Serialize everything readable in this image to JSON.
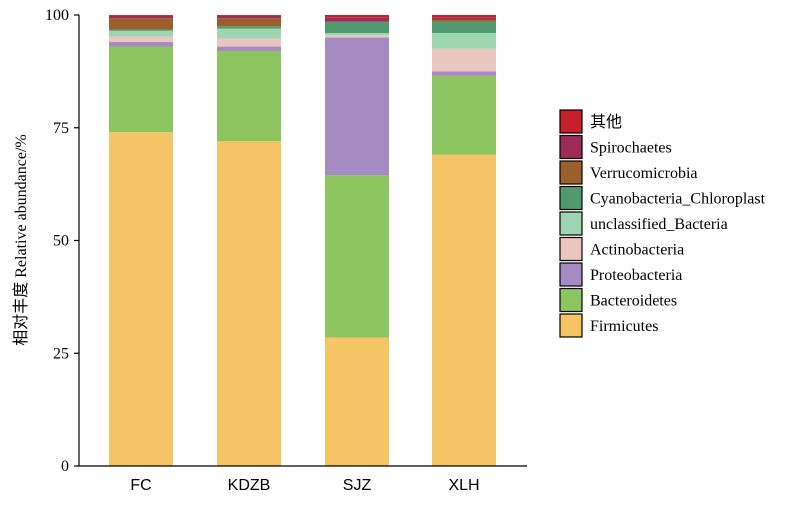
{
  "chart_data": {
    "type": "bar",
    "stacked": true,
    "title": "",
    "xlabel": "",
    "ylabel": "相对丰度 Relative abundance/%",
    "ylim": [
      0,
      100
    ],
    "yticks": [
      0,
      25,
      50,
      75,
      100
    ],
    "categories": [
      "FC",
      "KDZB",
      "SJZ",
      "XLH"
    ],
    "grid": false,
    "legend_position": "right",
    "series": [
      {
        "name": "Firmicutes",
        "color": "#F5C565",
        "values": [
          74.0,
          72.0,
          28.5,
          69.0
        ]
      },
      {
        "name": "Bacteroidetes",
        "color": "#8CC460",
        "values": [
          19.0,
          20.0,
          36.0,
          17.5
        ]
      },
      {
        "name": "Proteobacteria",
        "color": "#A58BC1",
        "values": [
          1.0,
          1.0,
          30.5,
          1.0
        ]
      },
      {
        "name": "Actinobacteria",
        "color": "#EBC6C0",
        "values": [
          1.2,
          1.8,
          0.5,
          5.0
        ]
      },
      {
        "name": "unclassified_Bacteria",
        "color": "#9DD6B0",
        "values": [
          1.3,
          2.2,
          0.5,
          3.5
        ]
      },
      {
        "name": "Cyanobacteria_Chloroplast",
        "color": "#4F9A6E",
        "values": [
          0.3,
          0.5,
          2.5,
          2.5
        ]
      },
      {
        "name": "Verrucomicrobia",
        "color": "#9B5F2C",
        "values": [
          2.5,
          1.8,
          0.0,
          0.5
        ]
      },
      {
        "name": "Spirochaetes",
        "color": "#9C2B58",
        "values": [
          0.5,
          0.5,
          1.0,
          0.5
        ]
      },
      {
        "name": "其他",
        "color": "#C8202A",
        "values": [
          0.2,
          0.2,
          0.5,
          0.5
        ]
      }
    ]
  }
}
